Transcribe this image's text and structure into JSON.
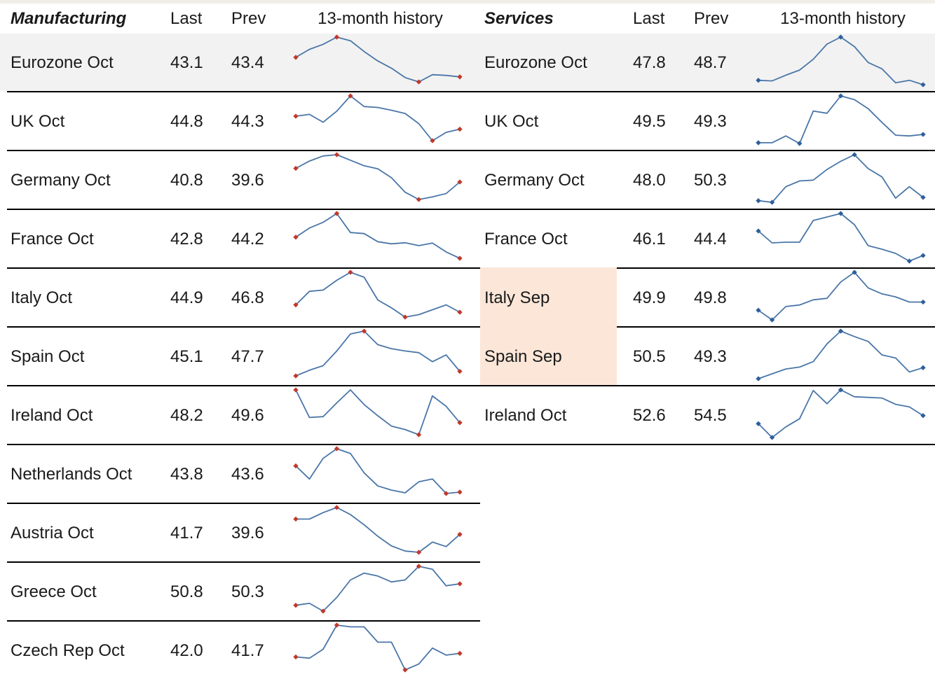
{
  "headers": {
    "mfg_title": "Manufacturing",
    "svc_title": "Services",
    "last": "Last",
    "prev": "Prev",
    "history": "13-month history"
  },
  "colors": {
    "line": "#4a76a8",
    "mfg_marker": "#c0392b",
    "svc_marker": "#2e5f9a",
    "highlight": "#fbe6d8",
    "shaded_row": "#f2f2f2"
  },
  "chart_data": {
    "type": "table",
    "manufacturing": [
      {
        "label": "Eurozone Oct",
        "last": "43.1",
        "prev": "43.4",
        "history": [
          43.5,
          44.6,
          45.3,
          46.3,
          45.8,
          44.3,
          43.0,
          42.0,
          40.7,
          40.1,
          41.1,
          41.0,
          40.8
        ]
      },
      {
        "label": "UK Oct",
        "last": "44.8",
        "prev": "44.3",
        "history": [
          45.5,
          45.9,
          44.2,
          46.6,
          49.9,
          47.6,
          47.4,
          46.8,
          46.1,
          43.9,
          40.2,
          42.0,
          42.7
        ]
      },
      {
        "label": "Germany Oct",
        "last": "40.8",
        "prev": "39.6",
        "history": [
          43.5,
          45.2,
          46.4,
          46.7,
          45.4,
          44.1,
          43.4,
          41.3,
          37.9,
          36.2,
          36.8,
          37.6,
          40.3
        ]
      },
      {
        "label": "France Oct",
        "last": "42.8",
        "prev": "44.2",
        "history": [
          48.6,
          51.2,
          52.8,
          55.3,
          49.9,
          49.6,
          47.3,
          46.7,
          47.0,
          46.2,
          46.9,
          44.4,
          42.6
        ]
      },
      {
        "label": "Italy Oct",
        "last": "44.9",
        "prev": "46.8",
        "history": [
          48.0,
          50.2,
          50.4,
          52.0,
          53.3,
          52.5,
          48.8,
          47.5,
          46.0,
          46.4,
          47.2,
          48.0,
          46.8
        ]
      },
      {
        "label": "Spain Oct",
        "last": "45.1",
        "prev": "47.7",
        "history": [
          46.2,
          47.2,
          48.0,
          50.6,
          53.6,
          54.1,
          51.7,
          51.0,
          50.6,
          50.3,
          48.7,
          49.9,
          47.0
        ]
      },
      {
        "label": "Ireland Oct",
        "last": "48.2",
        "prev": "49.6",
        "history": [
          52.6,
          49.4,
          49.5,
          51.1,
          52.6,
          50.9,
          49.6,
          48.4,
          48.0,
          47.4,
          51.9,
          50.7,
          48.8
        ]
      },
      {
        "label": "Netherlands Oct",
        "last": "43.8",
        "prev": "43.6",
        "history": [
          49.8,
          47.9,
          50.9,
          52.3,
          51.6,
          48.8,
          46.9,
          46.3,
          45.9,
          47.5,
          47.9,
          45.8,
          46.0
        ]
      },
      {
        "label": "Austria Oct",
        "last": "41.7",
        "prev": "39.6",
        "history": [
          43.2,
          43.2,
          44.2,
          45.0,
          43.9,
          42.3,
          40.5,
          39.0,
          38.2,
          38.0,
          39.6,
          38.9,
          40.8
        ]
      },
      {
        "label": "Greece Oct",
        "last": "50.8",
        "prev": "50.3",
        "history": [
          47.0,
          47.2,
          46.4,
          47.8,
          49.6,
          50.3,
          50.0,
          49.4,
          49.6,
          51.0,
          50.7,
          49.0,
          49.2
        ]
      },
      {
        "label": "Czech Rep Oct",
        "last": "42.0",
        "prev": "41.7",
        "history": [
          43.8,
          43.6,
          45.1,
          49.2,
          48.9,
          48.9,
          46.3,
          46.3,
          41.6,
          42.6,
          45.3,
          44.1,
          44.4
        ]
      }
    ],
    "services": [
      {
        "label": "Eurozone Oct",
        "last": "47.8",
        "prev": "48.7",
        "history": [
          48.5,
          48.4,
          49.3,
          50.1,
          51.8,
          54.2,
          55.3,
          53.8,
          51.3,
          50.3,
          48.1,
          48.5,
          47.8
        ]
      },
      {
        "label": "UK Oct",
        "last": "49.5",
        "prev": "49.3",
        "history": [
          48.8,
          48.8,
          49.7,
          48.7,
          53.0,
          52.7,
          55.0,
          54.5,
          53.3,
          51.5,
          49.8,
          49.7,
          49.9
        ]
      },
      {
        "label": "Germany Oct",
        "last": "48.0",
        "prev": "50.3",
        "history": [
          49.2,
          49.0,
          50.9,
          51.6,
          51.7,
          53.0,
          54.0,
          54.8,
          53.1,
          52.1,
          49.5,
          50.9,
          49.6
        ]
      },
      {
        "label": "France Oct",
        "last": "46.1",
        "prev": "44.4",
        "history": [
          49.5,
          47.8,
          47.9,
          47.9,
          51.0,
          51.5,
          52.0,
          50.4,
          47.4,
          46.9,
          46.3,
          45.2,
          46.0
        ]
      },
      {
        "label": "Italy Sep",
        "last": "49.9",
        "prev": "49.8",
        "history": [
          50.5,
          49.2,
          51.0,
          51.2,
          51.9,
          52.1,
          54.3,
          55.6,
          53.5,
          52.7,
          52.3,
          51.6,
          51.6
        ]
      },
      {
        "label": "Spain Sep",
        "last": "50.5",
        "prev": "49.3",
        "history": [
          48.3,
          49.1,
          49.9,
          50.2,
          51.1,
          54.0,
          56.1,
          55.2,
          54.4,
          52.2,
          51.7,
          49.4,
          50.1
        ]
      },
      {
        "label": "Ireland Oct",
        "last": "52.6",
        "prev": "54.5",
        "history": [
          50.5,
          48.3,
          50.0,
          51.3,
          55.8,
          53.7,
          55.9,
          54.8,
          54.7,
          54.6,
          53.6,
          53.2,
          51.8
        ]
      }
    ],
    "highlighted_services_rows": [
      4,
      5
    ],
    "marker_rule": "first, last, min, max marked"
  }
}
